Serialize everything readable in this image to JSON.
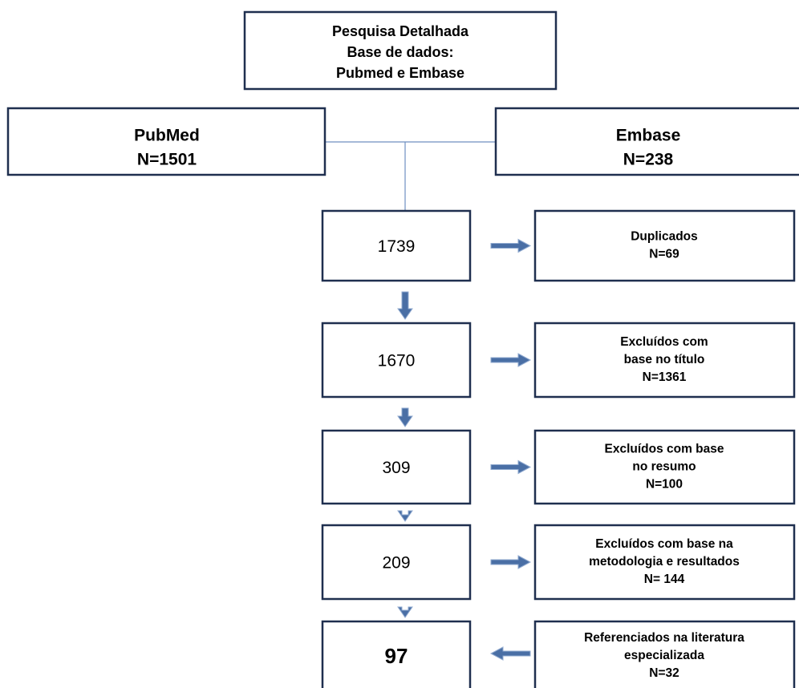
{
  "search": {
    "lines": [
      "Pesquisa Detalhada",
      "Base de dados:",
      "Pubmed e Embase"
    ]
  },
  "sources": [
    {
      "lines": [
        "PubMed",
        "N=1501"
      ]
    },
    {
      "lines": [
        "Embase",
        "N=238"
      ]
    }
  ],
  "flow": [
    {
      "count": "1739",
      "side": [
        "Duplicados",
        "N=69"
      ]
    },
    {
      "count": "1670",
      "side": [
        "Excluídos com",
        "base no título",
        "N=1361"
      ]
    },
    {
      "count": "309",
      "side": [
        "Excluídos com base",
        "no resumo",
        "N=100"
      ]
    },
    {
      "count": "209",
      "side": [
        "Excluídos  com base na",
        "metodologia e resultados",
        "N= 144"
      ]
    },
    {
      "count": "97",
      "side": [
        "Referenciados na literatura",
        "especializada",
        "N=32"
      ]
    }
  ]
}
